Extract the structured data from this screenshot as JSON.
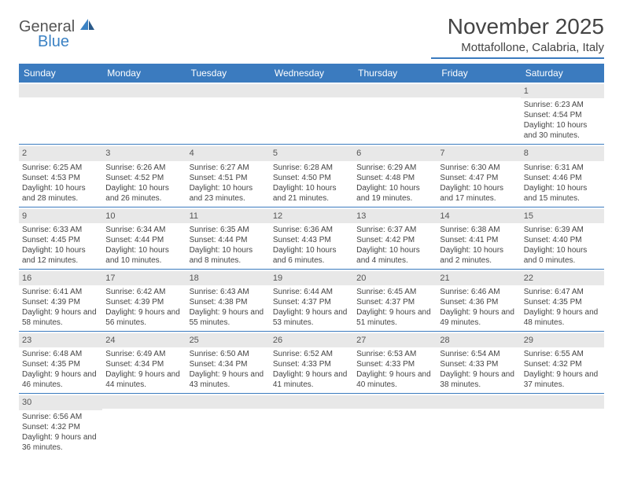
{
  "logo": {
    "text1": "General",
    "text2": "Blue"
  },
  "title": "November 2025",
  "location": "Mottafollone, Calabria, Italy",
  "styling": {
    "header_bg": "#3b7bbf",
    "header_text_color": "#ffffff",
    "daynum_bg": "#e8e8e8",
    "border_color": "#3b7bbf",
    "body_text_color": "#444444",
    "title_fontsize": 28,
    "location_fontsize": 15,
    "dayheader_fontsize": 12,
    "detail_fontsize": 10,
    "page_bg": "#ffffff",
    "logo_accent": "#3b82c4"
  },
  "day_names": [
    "Sunday",
    "Monday",
    "Tuesday",
    "Wednesday",
    "Thursday",
    "Friday",
    "Saturday"
  ],
  "weeks": [
    [
      {
        "n": "",
        "r": "",
        "s": "",
        "d": ""
      },
      {
        "n": "",
        "r": "",
        "s": "",
        "d": ""
      },
      {
        "n": "",
        "r": "",
        "s": "",
        "d": ""
      },
      {
        "n": "",
        "r": "",
        "s": "",
        "d": ""
      },
      {
        "n": "",
        "r": "",
        "s": "",
        "d": ""
      },
      {
        "n": "",
        "r": "",
        "s": "",
        "d": ""
      },
      {
        "n": "1",
        "r": "Sunrise: 6:23 AM",
        "s": "Sunset: 4:54 PM",
        "d": "Daylight: 10 hours and 30 minutes."
      }
    ],
    [
      {
        "n": "2",
        "r": "Sunrise: 6:25 AM",
        "s": "Sunset: 4:53 PM",
        "d": "Daylight: 10 hours and 28 minutes."
      },
      {
        "n": "3",
        "r": "Sunrise: 6:26 AM",
        "s": "Sunset: 4:52 PM",
        "d": "Daylight: 10 hours and 26 minutes."
      },
      {
        "n": "4",
        "r": "Sunrise: 6:27 AM",
        "s": "Sunset: 4:51 PM",
        "d": "Daylight: 10 hours and 23 minutes."
      },
      {
        "n": "5",
        "r": "Sunrise: 6:28 AM",
        "s": "Sunset: 4:50 PM",
        "d": "Daylight: 10 hours and 21 minutes."
      },
      {
        "n": "6",
        "r": "Sunrise: 6:29 AM",
        "s": "Sunset: 4:48 PM",
        "d": "Daylight: 10 hours and 19 minutes."
      },
      {
        "n": "7",
        "r": "Sunrise: 6:30 AM",
        "s": "Sunset: 4:47 PM",
        "d": "Daylight: 10 hours and 17 minutes."
      },
      {
        "n": "8",
        "r": "Sunrise: 6:31 AM",
        "s": "Sunset: 4:46 PM",
        "d": "Daylight: 10 hours and 15 minutes."
      }
    ],
    [
      {
        "n": "9",
        "r": "Sunrise: 6:33 AM",
        "s": "Sunset: 4:45 PM",
        "d": "Daylight: 10 hours and 12 minutes."
      },
      {
        "n": "10",
        "r": "Sunrise: 6:34 AM",
        "s": "Sunset: 4:44 PM",
        "d": "Daylight: 10 hours and 10 minutes."
      },
      {
        "n": "11",
        "r": "Sunrise: 6:35 AM",
        "s": "Sunset: 4:44 PM",
        "d": "Daylight: 10 hours and 8 minutes."
      },
      {
        "n": "12",
        "r": "Sunrise: 6:36 AM",
        "s": "Sunset: 4:43 PM",
        "d": "Daylight: 10 hours and 6 minutes."
      },
      {
        "n": "13",
        "r": "Sunrise: 6:37 AM",
        "s": "Sunset: 4:42 PM",
        "d": "Daylight: 10 hours and 4 minutes."
      },
      {
        "n": "14",
        "r": "Sunrise: 6:38 AM",
        "s": "Sunset: 4:41 PM",
        "d": "Daylight: 10 hours and 2 minutes."
      },
      {
        "n": "15",
        "r": "Sunrise: 6:39 AM",
        "s": "Sunset: 4:40 PM",
        "d": "Daylight: 10 hours and 0 minutes."
      }
    ],
    [
      {
        "n": "16",
        "r": "Sunrise: 6:41 AM",
        "s": "Sunset: 4:39 PM",
        "d": "Daylight: 9 hours and 58 minutes."
      },
      {
        "n": "17",
        "r": "Sunrise: 6:42 AM",
        "s": "Sunset: 4:39 PM",
        "d": "Daylight: 9 hours and 56 minutes."
      },
      {
        "n": "18",
        "r": "Sunrise: 6:43 AM",
        "s": "Sunset: 4:38 PM",
        "d": "Daylight: 9 hours and 55 minutes."
      },
      {
        "n": "19",
        "r": "Sunrise: 6:44 AM",
        "s": "Sunset: 4:37 PM",
        "d": "Daylight: 9 hours and 53 minutes."
      },
      {
        "n": "20",
        "r": "Sunrise: 6:45 AM",
        "s": "Sunset: 4:37 PM",
        "d": "Daylight: 9 hours and 51 minutes."
      },
      {
        "n": "21",
        "r": "Sunrise: 6:46 AM",
        "s": "Sunset: 4:36 PM",
        "d": "Daylight: 9 hours and 49 minutes."
      },
      {
        "n": "22",
        "r": "Sunrise: 6:47 AM",
        "s": "Sunset: 4:35 PM",
        "d": "Daylight: 9 hours and 48 minutes."
      }
    ],
    [
      {
        "n": "23",
        "r": "Sunrise: 6:48 AM",
        "s": "Sunset: 4:35 PM",
        "d": "Daylight: 9 hours and 46 minutes."
      },
      {
        "n": "24",
        "r": "Sunrise: 6:49 AM",
        "s": "Sunset: 4:34 PM",
        "d": "Daylight: 9 hours and 44 minutes."
      },
      {
        "n": "25",
        "r": "Sunrise: 6:50 AM",
        "s": "Sunset: 4:34 PM",
        "d": "Daylight: 9 hours and 43 minutes."
      },
      {
        "n": "26",
        "r": "Sunrise: 6:52 AM",
        "s": "Sunset: 4:33 PM",
        "d": "Daylight: 9 hours and 41 minutes."
      },
      {
        "n": "27",
        "r": "Sunrise: 6:53 AM",
        "s": "Sunset: 4:33 PM",
        "d": "Daylight: 9 hours and 40 minutes."
      },
      {
        "n": "28",
        "r": "Sunrise: 6:54 AM",
        "s": "Sunset: 4:33 PM",
        "d": "Daylight: 9 hours and 38 minutes."
      },
      {
        "n": "29",
        "r": "Sunrise: 6:55 AM",
        "s": "Sunset: 4:32 PM",
        "d": "Daylight: 9 hours and 37 minutes."
      }
    ],
    [
      {
        "n": "30",
        "r": "Sunrise: 6:56 AM",
        "s": "Sunset: 4:32 PM",
        "d": "Daylight: 9 hours and 36 minutes."
      },
      {
        "n": "",
        "r": "",
        "s": "",
        "d": ""
      },
      {
        "n": "",
        "r": "",
        "s": "",
        "d": ""
      },
      {
        "n": "",
        "r": "",
        "s": "",
        "d": ""
      },
      {
        "n": "",
        "r": "",
        "s": "",
        "d": ""
      },
      {
        "n": "",
        "r": "",
        "s": "",
        "d": ""
      },
      {
        "n": "",
        "r": "",
        "s": "",
        "d": ""
      }
    ]
  ]
}
